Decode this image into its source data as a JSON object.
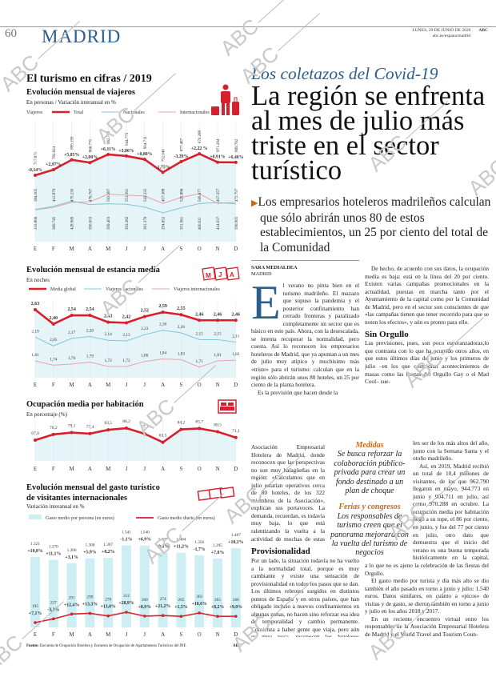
{
  "header": {
    "page_number": "60",
    "section": "MADRID",
    "date": "LUNES, 29 DE JUNIO DE 2020",
    "brand": "ABC",
    "url": "abc.es/espana/madrid"
  },
  "watermark": "ABC",
  "infographic": {
    "title": "El turismo en cifras / 2019",
    "source_label": "Fuente:",
    "source": "Encuesta de Ocupación Hotelera y Encuesta de Ocupación de Apartamentos Turísticos del INE",
    "credit": "ABC",
    "icons": {
      "viajeros": "traveler-luggage-icon",
      "estancia": "calendar-icon",
      "ocupacion": "bed-icon",
      "gasto": "banknotes-icon"
    },
    "colors": {
      "red": "#d7202e",
      "blue": "#7cc8d3",
      "pink": "#e8a4a8",
      "fill": "#dff1f5"
    }
  },
  "chart_data": [
    {
      "type": "line",
      "title": "Evolución mensual de viajeros",
      "subtitle": "En personas / Variación interanual en %",
      "legend_title": "Viajeros",
      "categories": [
        "E",
        "F",
        "M",
        "A",
        "M",
        "J",
        "J",
        "A",
        "S",
        "O",
        "N",
        "D"
      ],
      "series": [
        {
          "name": "Total",
          "values": [
            717871,
            782624,
            899199,
            866770,
            962790,
            944773,
            904711,
            752040,
            877487,
            970288,
            871294,
            869762
          ],
          "change_pct": [
            "-0,14%",
            "+2,97%",
            "+5,05%",
            "+2,00%",
            "+6,11%",
            "+3,06%",
            "+0,80%",
            "-1,75%",
            "-3,39%",
            "+2,22 %",
            "+0,91%",
            "+6,46%"
          ]
        },
        {
          "name": "Nacionales",
          "values": [
            333866,
            369745,
            428969,
            390003,
            399403,
            393382,
            361376,
            294652,
            351961,
            400611,
            414037,
            396965
          ]
        },
        {
          "name": "Internacionales",
          "values": [
            384005,
            412879,
            470230,
            476767,
            563387,
            551391,
            543335,
            457388,
            525886,
            569677,
            457257,
            472797
          ]
        }
      ],
      "legend": "top"
    },
    {
      "type": "line",
      "title": "Evolución mensual de estancia media",
      "subtitle": "En noches",
      "categories": [
        "E",
        "F",
        "M",
        "A",
        "M",
        "J",
        "J",
        "A",
        "S",
        "O",
        "N",
        "D"
      ],
      "series": [
        {
          "name": "Media global",
          "values": [
            2.63,
            2.4,
            2.54,
            2.54,
            2.43,
            2.42,
            2.52,
            2.59,
            2.55,
            2.46,
            2.46,
            2.46
          ]
        },
        {
          "name": "Viajeros nacionales",
          "values": [
            2.19,
            2.05,
            2.17,
            2.2,
            2.14,
            2.13,
            2.23,
            2.3,
            2.26,
            2.15,
            2.15,
            2.11
          ]
        },
        {
          "name": "Viajeros internacionales",
          "values": [
            1.81,
            1.74,
            1.76,
            1.79,
            1.72,
            1.72,
            1.8,
            1.84,
            1.83,
            1.71,
            1.81,
            1.82
          ]
        }
      ],
      "legend": "top"
    },
    {
      "type": "line",
      "title": "Ocupación media por habitación",
      "subtitle": "En porcentaje (%)",
      "categories": [
        "E",
        "F",
        "M",
        "A",
        "M",
        "J",
        "J",
        "A",
        "S",
        "O",
        "N",
        "D"
      ],
      "values": [
        67.0,
        76.2,
        79.1,
        77.4,
        83.5,
        86.2,
        77.1,
        63.5,
        84.2,
        85.7,
        80.5,
        71.1
      ]
    },
    {
      "type": "bar",
      "title": "Evolución mensual del gasto turístico",
      "title2": "de visitantes internacionales",
      "subtitle": "Variación interanual en %",
      "categories": [
        "E",
        "F",
        "M",
        "A",
        "M",
        "J",
        "J",
        "A",
        "S",
        "O",
        "N",
        "D"
      ],
      "series": [
        {
          "name": "Gasto medio por persona (en euros)",
          "type": "bar",
          "values": [
            1321,
            1270,
            1206,
            1300,
            1307,
            1541,
            1540,
            1407,
            1404,
            1356,
            1295,
            1487
          ],
          "change_pct": [
            "+10,0%",
            "+11,1%",
            "+3,1%",
            "+5,9%",
            "+8,2%",
            "-1,1%",
            "+6,9%",
            "-0,8%",
            "+11,2%",
            "-1,7%",
            "+7,0%",
            "+10,1%"
          ]
        },
        {
          "name": "Gasto medio diario (en euros)",
          "type": "line",
          "values": [
            195,
            237,
            291,
            299,
            270,
            312,
            268,
            274,
            265,
            303,
            265,
            266
          ],
          "change_pct": [
            "+7,1%",
            "-3,3%",
            "+12,4%",
            "+13,3%",
            "+13,0%",
            "+28,9%",
            "+8,9%",
            "+21,2%",
            "+1,5%",
            "+10,6%",
            "+8,2%",
            "+9,0%"
          ]
        }
      ],
      "legend": "top"
    }
  ],
  "article": {
    "kicker": "Los coletazos del Covid-19",
    "headline": "La región se enfrenta al mes de julio más triste en el sector turístico",
    "subhead": "Los empresarios hoteleros madrileños calculan que sólo abrirán unos 80 de estos establecimientos, un 25 por ciento del total de la Comunidad",
    "author": "SARA MEDIALDEA",
    "location": "MADRID",
    "drop_cap": "E",
    "c1a_p1": "l verano no pinta bien en el turismo madrileño. El mazazo que supuso la pandemia y el posterior confinamiento han cerrado fronteras y paralizado completamente un sector que es básico en este país. Ahora, con la desescalada, se intenta recuperar la normalidad, pero cuesta. Así lo reconocen los empresarios hoteleros de Madrid, que ya apuntan a un mes de julio muy atípico y muchísimo más «triste» para el turismo: calculan que en la región sólo abrirán unos 80 hoteles, un 25 por ciento de la planta hotelera.",
    "c1a_p2": "Es la previsión que hacen desde la",
    "c1b": "Asociación Empresarial Hotelera de Madrid, donde reconocen que las perspectivas no son muy halagüeñas en la región: «Calculamos que en julio estarían operativos cerca de 80 hoteles, de los 322 miembros de la Asociación», explican sus portavoces. La demanda, recuerdan, es todavía muy baja, lo que está ralentizando la vuelta a la actividad de muchas de estas empresas.",
    "h_provisionalidad": "Provisionalidad",
    "c1c": "Por un lado, la situación todavía no ha vuelto a la normalidad total, porque es muy cambiante y existe una sensación de provisionalidad en todos los pasos que se dan. Los últimos rebrotes surgidos en distintos puntos de España y en otros países, que han obligado incluso a nuevos confinamientos en algunas zonas, no hacen sino reforzar esa idea de temporalidad y cambio permanente. Comienza a haber gente que viaja, pero aún es muy poca, reconocen los hoteleros madrileños.",
    "c2a_p1": "De hecho, de acuerdo con sus datos, la ocupación media es baja: está en la línea del 20 por ciento. Existen varias campañas promocionales en la actualidad, puestas en marcha tanto por el Ayuntamiento de la capital como por la Comunidad de Madrid, pero en el sector son conscientes de que «las campañas tienen que tener recorrido para que se noten los efectos», y aún es pronto para ello.",
    "h_sin_orgullo": "Sin Orgullo",
    "c2a_p2": "Las previsiones, pues, son poco esperanzadoras,lo que contrasta con lo que ha ocurrido otros años, en que estos últimos días de junio y los primeros de julio –en los que coincidían acontecimientos de masas como las fiestas del Orgullo Gay o el Mad Cool– sue-",
    "c2b_p1": "len ser de los más altos del año, junto con la Semana Santa y el otoño madrileño.",
    "c2b_p2": "Así, en 2019, Madrid recibió un total de 10,4 millones de visitantes, de los que 962.790 llegaron en mayo, 944.773 en junio y 904.711 en julio, así como 970.288 en octubre. La ocupación media por habitación llegó a su tope, el 86 por ciento, en junio, y fue del 77 por ciento en julio, otro dato que demuestra que el inicio del verano es una buena temporada históricamente en la capital, algo",
    "c2c_p1": "a lo que no es ajeno la celebración de las fiestas del Orgullo.",
    "c2c_p2": "El gasto medio por turista y día más alto se dio también el año pasado en torno a junio y julio: 1.540 euros. Datos similares, en cuanto a «picos» de visitas y de gasto, se dieron también en torno a junio y julio en los años 2018 y 2017.",
    "c2c_p3": "En un reciente encuentro virtual entre los responsables de la Asociación Empresarial Hotelera de Madrid y el World Travel and Tourism Coun-",
    "pullquote1_label": "Medidas",
    "pullquote1": "Se busca reforzar la colaboración público-privada para crear un fondo destinado a un plan de choque",
    "pullquote2_label": "Ferias y congresos",
    "pullquote2": "Los responsables de turismo creen que el panorama mejorará con la vuelta del turismo de negocios"
  }
}
